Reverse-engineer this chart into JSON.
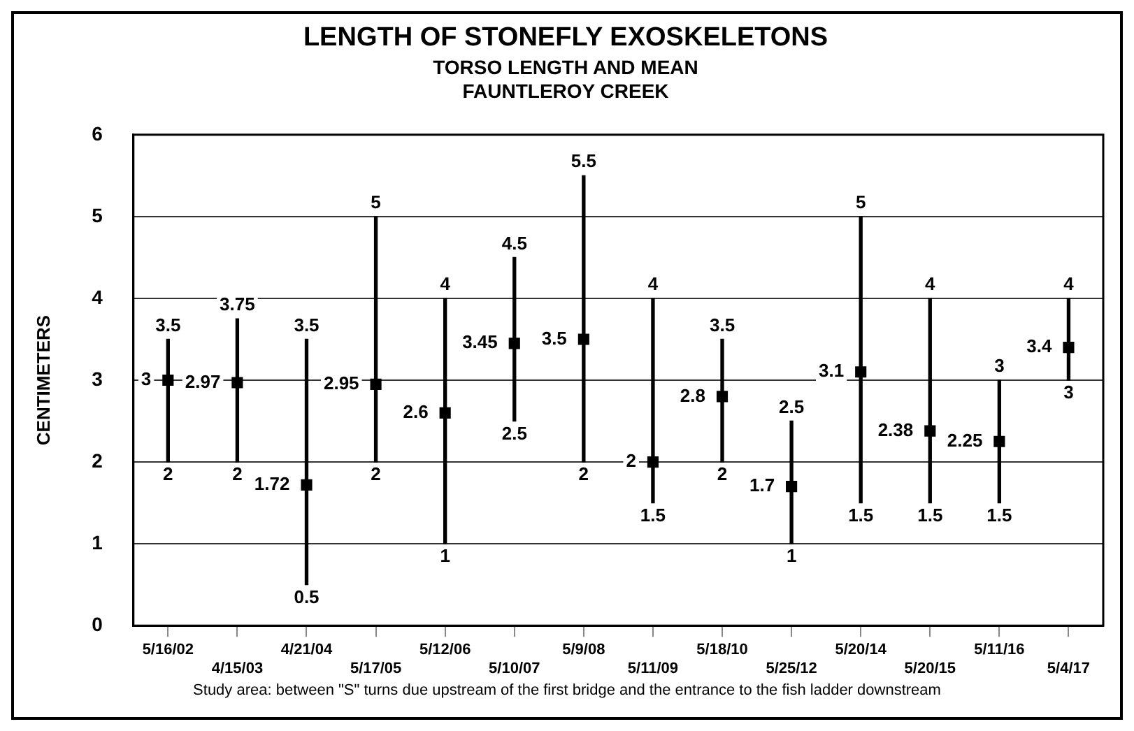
{
  "chart_data": {
    "type": "bar",
    "title": "LENGTH OF STONEFLY EXOSKELETONS",
    "subtitle": "TORSO LENGTH AND MEAN\nFAUNTLEROY CREEK",
    "ylabel": "CENTIMETERS",
    "categories": [
      "5/16/02",
      "4/15/03",
      "4/21/04",
      "5/17/05",
      "5/12/06",
      "5/10/07",
      "5/9/08",
      "5/11/09",
      "5/18/10",
      "5/25/12",
      "5/20/14",
      "5/20/15",
      "5/11/16",
      "5/4/17"
    ],
    "series": [
      {
        "color": "#000000",
        "base": [
          2,
          2,
          0.5,
          2,
          1,
          2.5,
          2,
          1.5,
          2,
          1,
          1.5,
          1.5,
          1.5,
          3
        ],
        "values": [
          1.5,
          1.75,
          3,
          3,
          3,
          2,
          3.5,
          2.5,
          1.5,
          1.5,
          3.5,
          2.5,
          1.5,
          1
        ]
      },
      {
        "type": "scatter",
        "color": "#000000",
        "values": [
          3,
          2.97,
          1.72,
          2.95,
          2.6,
          3.45,
          3.5,
          2,
          2.8,
          1.7,
          3.1,
          2.38,
          2.25,
          3.4
        ],
        "value_labels": [
          "3",
          "2.97",
          "1.72",
          "2.95",
          "2.6",
          "3.45",
          "3.5",
          "2",
          "2.8",
          "1.7",
          "3.1",
          "2.38",
          "2.25",
          "3.4"
        ]
      }
    ],
    "ylim": [
      0,
      6
    ],
    "yticks": [
      0,
      1,
      2,
      3,
      4,
      5,
      6
    ],
    "grid": "y",
    "annotations": [
      {
        "text": "3.5",
        "x": "5/16/02",
        "y": 3.5
      },
      {
        "text": "2",
        "x": "5/16/02",
        "y": 2
      },
      {
        "text": "3.75",
        "x": "4/15/03",
        "y": 3.75
      },
      {
        "text": "2",
        "x": "4/15/03",
        "y": 2
      },
      {
        "text": "3.5",
        "x": "4/21/04",
        "y": 3.5
      },
      {
        "text": "0.5",
        "x": "4/21/04",
        "y": 0.5
      },
      {
        "text": "5",
        "x": "5/17/05",
        "y": 5
      },
      {
        "text": "2",
        "x": "5/17/05",
        "y": 2
      },
      {
        "text": "4",
        "x": "5/12/06",
        "y": 4
      },
      {
        "text": "1",
        "x": "5/12/06",
        "y": 1
      },
      {
        "text": "4.5",
        "x": "5/10/07",
        "y": 4.5
      },
      {
        "text": "2.5",
        "x": "5/10/07",
        "y": 2.5
      },
      {
        "text": "5.5",
        "x": "5/9/08",
        "y": 5.5
      },
      {
        "text": "2",
        "x": "5/9/08",
        "y": 2
      },
      {
        "text": "4",
        "x": "5/11/09",
        "y": 4
      },
      {
        "text": "1.5",
        "x": "5/11/09",
        "y": 1.5
      },
      {
        "text": "3.5",
        "x": "5/18/10",
        "y": 3.5
      },
      {
        "text": "2",
        "x": "5/18/10",
        "y": 2
      },
      {
        "text": "2.5",
        "x": "5/25/12",
        "y": 2.5
      },
      {
        "text": "1",
        "x": "5/25/12",
        "y": 1
      },
      {
        "text": "5",
        "x": "5/20/14",
        "y": 5
      },
      {
        "text": "1.5",
        "x": "5/20/14",
        "y": 1.5
      },
      {
        "text": "4",
        "x": "5/20/15",
        "y": 4
      },
      {
        "text": "1.5",
        "x": "5/20/15",
        "y": 1.5
      },
      {
        "text": "3",
        "x": "5/11/16",
        "y": 3
      },
      {
        "text": "1.5",
        "x": "5/11/16",
        "y": 1.5
      },
      {
        "text": "4",
        "x": "5/4/17",
        "y": 4
      },
      {
        "text": "3",
        "x": "5/4/17",
        "y": 3
      },
      "Study area: between \"S\" turns due upstream of the first bridge and the entrance to the fish ladder downstream"
    ]
  }
}
